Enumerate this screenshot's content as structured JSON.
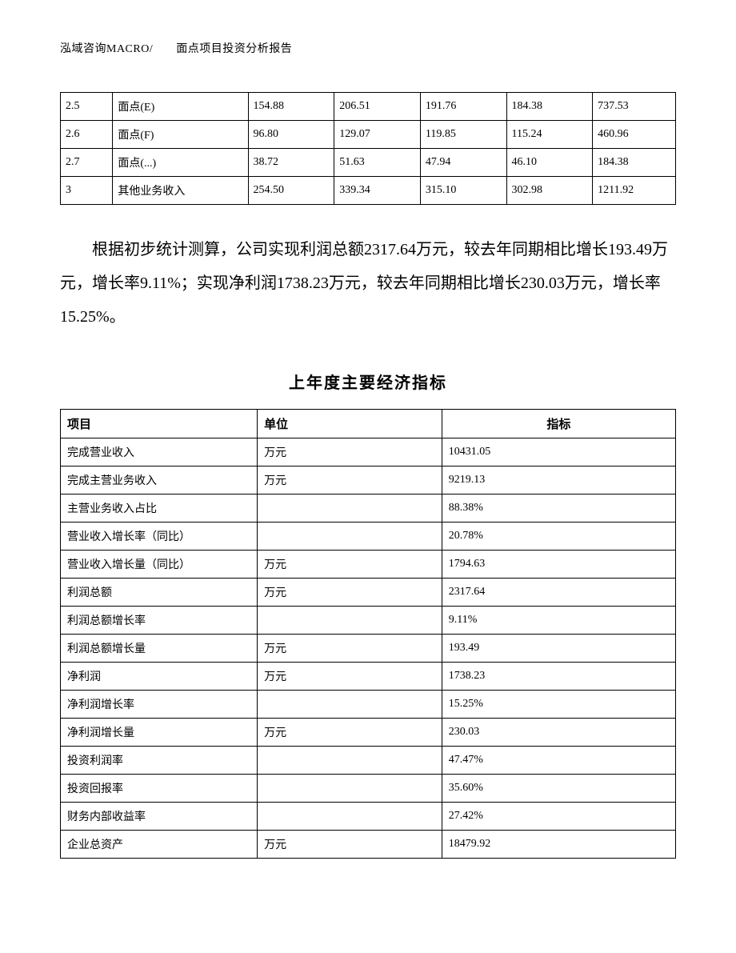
{
  "header": {
    "text": "泓域咨询MACRO/　　面点项目投资分析报告"
  },
  "table1": {
    "rows": [
      [
        "2.5",
        "面点(E)",
        "154.88",
        "206.51",
        "191.76",
        "184.38",
        "737.53"
      ],
      [
        "2.6",
        "面点(F)",
        "96.80",
        "129.07",
        "119.85",
        "115.24",
        "460.96"
      ],
      [
        "2.7",
        "面点(...)",
        "38.72",
        "51.63",
        "47.94",
        "46.10",
        "184.38"
      ],
      [
        "3",
        "其他业务收入",
        "254.50",
        "339.34",
        "315.10",
        "302.98",
        "1211.92"
      ]
    ]
  },
  "paragraph": {
    "text": "根据初步统计测算，公司实现利润总额2317.64万元，较去年同期相比增长193.49万元，增长率9.11%；实现净利润1738.23万元，较去年同期相比增长230.03万元，增长率15.25%。"
  },
  "sectionTitle": "上年度主要经济指标",
  "table2": {
    "headers": [
      "项目",
      "单位",
      "指标"
    ],
    "rows": [
      [
        "完成营业收入",
        "万元",
        "10431.05"
      ],
      [
        "完成主营业务收入",
        "万元",
        "9219.13"
      ],
      [
        "主营业务收入占比",
        "",
        "88.38%"
      ],
      [
        "营业收入增长率（同比）",
        "",
        "20.78%"
      ],
      [
        "营业收入增长量（同比）",
        "万元",
        "1794.63"
      ],
      [
        "利润总额",
        "万元",
        "2317.64"
      ],
      [
        "利润总额增长率",
        "",
        "9.11%"
      ],
      [
        "利润总额增长量",
        "万元",
        "193.49"
      ],
      [
        "净利润",
        "万元",
        "1738.23"
      ],
      [
        "净利润增长率",
        "",
        "15.25%"
      ],
      [
        "净利润增长量",
        "万元",
        "230.03"
      ],
      [
        "投资利润率",
        "",
        "47.47%"
      ],
      [
        "投资回报率",
        "",
        "35.60%"
      ],
      [
        "财务内部收益率",
        "",
        "27.42%"
      ],
      [
        "企业总资产",
        "万元",
        "18479.92"
      ]
    ]
  }
}
